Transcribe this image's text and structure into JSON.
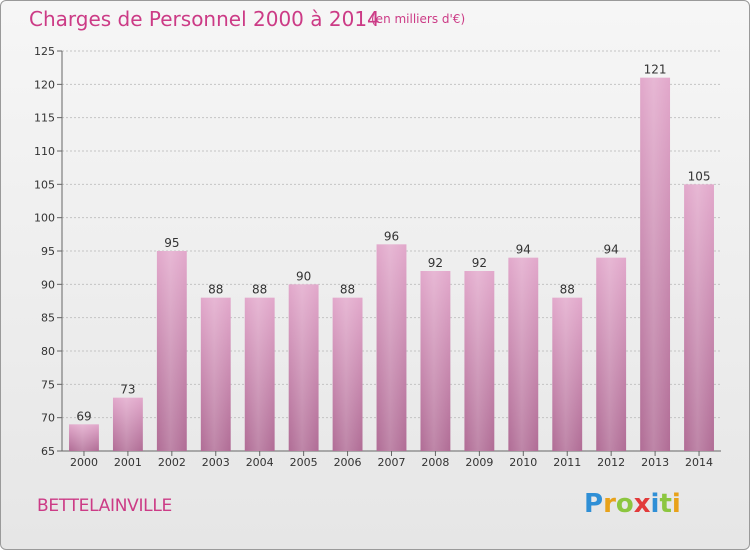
{
  "title": "Charges de Personnel 2000 à 2014",
  "subtitle": "(en milliers d'€)",
  "commune": "BETTELAINVILLE",
  "logo": {
    "p": "P",
    "r": "r",
    "o": "o",
    "x": "x",
    "i": "i",
    "t": "t",
    "i2": "i"
  },
  "colors": {
    "bar_top": "#e2a8cb",
    "bar_bottom": "#b06c95",
    "title": "#cc3b86"
  },
  "chart_data": {
    "type": "bar",
    "categories": [
      "2000",
      "2001",
      "2002",
      "2003",
      "2004",
      "2005",
      "2006",
      "2007",
      "2008",
      "2009",
      "2010",
      "2011",
      "2012",
      "2013",
      "2014"
    ],
    "values": [
      69,
      73,
      95,
      88,
      88,
      90,
      88,
      96,
      92,
      92,
      94,
      88,
      94,
      121,
      105
    ],
    "ylim": [
      65,
      125
    ],
    "yticks": [
      65,
      70,
      75,
      80,
      85,
      90,
      95,
      100,
      105,
      110,
      115,
      120,
      125
    ],
    "grid": true
  }
}
